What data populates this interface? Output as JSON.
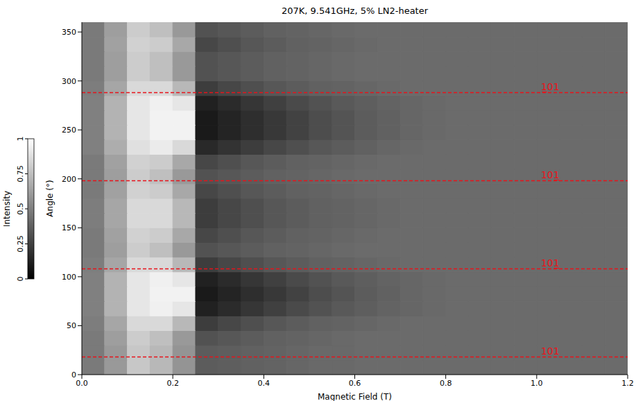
{
  "chart_data": {
    "type": "heatmap",
    "title": "207K, 9.541GHz, 5% LN2-heater",
    "x_label": "Magnetic Field (T)",
    "y_label": "Angle (°)",
    "xlim": [
      0,
      1.2
    ],
    "xticks": [
      {
        "value": 0,
        "label": "0.0"
      },
      0.2,
      0.4,
      0.6,
      0.8,
      {
        "value": 1,
        "label": "1.0"
      },
      1.2
    ],
    "ylim": [
      0,
      360
    ],
    "yticks": [
      0,
      50,
      100,
      150,
      200,
      250,
      300,
      350
    ],
    "x_bins": [
      0,
      0.05,
      0.1,
      0.15,
      0.2,
      0.25,
      0.3,
      0.35,
      0.4,
      0.45,
      0.5,
      0.55,
      0.6,
      0.65,
      0.7,
      0.75,
      0.8,
      0.85,
      0.9,
      0.95,
      1,
      1.05,
      1.1,
      1.15,
      1.2
    ],
    "y_bins": [
      0,
      15,
      30,
      45,
      60,
      75,
      90,
      105,
      120,
      135,
      150,
      165,
      180,
      195,
      210,
      225,
      240,
      255,
      270,
      285,
      300,
      315,
      330,
      345,
      360
    ],
    "cells": [
      [
        0.48,
        0.6,
        0.78,
        0.72,
        0.58,
        0.36,
        0.37,
        0.38,
        0.39,
        0.4,
        0.41,
        0.41,
        0.42,
        0.42,
        0.42,
        0.42,
        0.42,
        0.42,
        0.42,
        0.42,
        0.42,
        0.42,
        0.42,
        0.42
      ],
      [
        0.48,
        0.6,
        0.78,
        0.72,
        0.58,
        0.36,
        0.37,
        0.38,
        0.39,
        0.4,
        0.41,
        0.41,
        0.42,
        0.42,
        0.42,
        0.42,
        0.42,
        0.42,
        0.42,
        0.42,
        0.42,
        0.42,
        0.42,
        0.42
      ],
      [
        0.48,
        0.62,
        0.8,
        0.75,
        0.6,
        0.32,
        0.34,
        0.36,
        0.38,
        0.39,
        0.4,
        0.41,
        0.42,
        0.42,
        0.42,
        0.42,
        0.42,
        0.42,
        0.42,
        0.42,
        0.42,
        0.42,
        0.42,
        0.42
      ],
      [
        0.49,
        0.65,
        0.85,
        0.85,
        0.72,
        0.24,
        0.28,
        0.31,
        0.34,
        0.36,
        0.38,
        0.39,
        0.4,
        0.41,
        0.42,
        0.42,
        0.42,
        0.42,
        0.42,
        0.42,
        0.42,
        0.42,
        0.42,
        0.42
      ],
      [
        0.5,
        0.7,
        0.9,
        0.94,
        0.9,
        0.13,
        0.17,
        0.21,
        0.25,
        0.29,
        0.32,
        0.35,
        0.37,
        0.39,
        0.4,
        0.41,
        0.42,
        0.42,
        0.42,
        0.42,
        0.42,
        0.42,
        0.42,
        0.42
      ],
      [
        0.5,
        0.7,
        0.9,
        0.95,
        0.95,
        0.1,
        0.14,
        0.18,
        0.22,
        0.26,
        0.3,
        0.33,
        0.36,
        0.38,
        0.4,
        0.41,
        0.42,
        0.42,
        0.42,
        0.42,
        0.42,
        0.42,
        0.42,
        0.42
      ],
      [
        0.5,
        0.7,
        0.9,
        0.94,
        0.9,
        0.13,
        0.17,
        0.21,
        0.25,
        0.29,
        0.32,
        0.35,
        0.37,
        0.39,
        0.4,
        0.41,
        0.42,
        0.42,
        0.42,
        0.42,
        0.42,
        0.42,
        0.42,
        0.42
      ],
      [
        0.49,
        0.65,
        0.85,
        0.85,
        0.72,
        0.24,
        0.28,
        0.31,
        0.34,
        0.36,
        0.38,
        0.39,
        0.4,
        0.41,
        0.42,
        0.42,
        0.42,
        0.42,
        0.42,
        0.42,
        0.42,
        0.42,
        0.42,
        0.42
      ],
      [
        0.48,
        0.62,
        0.8,
        0.75,
        0.6,
        0.32,
        0.34,
        0.36,
        0.38,
        0.39,
        0.4,
        0.41,
        0.42,
        0.42,
        0.42,
        0.42,
        0.42,
        0.42,
        0.42,
        0.42,
        0.42,
        0.42,
        0.42,
        0.42
      ],
      [
        0.48,
        0.63,
        0.82,
        0.8,
        0.66,
        0.28,
        0.31,
        0.34,
        0.36,
        0.38,
        0.39,
        0.4,
        0.41,
        0.42,
        0.42,
        0.42,
        0.42,
        0.42,
        0.42,
        0.42,
        0.42,
        0.42,
        0.42,
        0.42
      ],
      [
        0.49,
        0.65,
        0.85,
        0.85,
        0.72,
        0.24,
        0.28,
        0.31,
        0.34,
        0.36,
        0.38,
        0.39,
        0.4,
        0.41,
        0.42,
        0.42,
        0.42,
        0.42,
        0.42,
        0.42,
        0.42,
        0.42,
        0.42,
        0.42
      ],
      [
        0.49,
        0.65,
        0.85,
        0.85,
        0.72,
        0.24,
        0.28,
        0.31,
        0.34,
        0.36,
        0.38,
        0.39,
        0.4,
        0.41,
        0.42,
        0.42,
        0.42,
        0.42,
        0.42,
        0.42,
        0.42,
        0.42,
        0.42,
        0.42
      ],
      [
        0.48,
        0.63,
        0.82,
        0.8,
        0.66,
        0.28,
        0.31,
        0.34,
        0.36,
        0.38,
        0.39,
        0.4,
        0.41,
        0.42,
        0.42,
        0.42,
        0.42,
        0.42,
        0.42,
        0.42,
        0.42,
        0.42,
        0.42,
        0.42
      ],
      [
        0.48,
        0.62,
        0.8,
        0.75,
        0.6,
        0.32,
        0.34,
        0.36,
        0.38,
        0.39,
        0.4,
        0.41,
        0.42,
        0.42,
        0.42,
        0.42,
        0.42,
        0.42,
        0.42,
        0.42,
        0.42,
        0.42,
        0.42,
        0.42
      ],
      [
        0.48,
        0.63,
        0.82,
        0.8,
        0.66,
        0.28,
        0.31,
        0.34,
        0.36,
        0.38,
        0.39,
        0.4,
        0.41,
        0.42,
        0.42,
        0.42,
        0.42,
        0.42,
        0.42,
        0.42,
        0.42,
        0.42,
        0.42,
        0.42
      ],
      [
        0.5,
        0.68,
        0.88,
        0.92,
        0.85,
        0.16,
        0.2,
        0.24,
        0.28,
        0.31,
        0.34,
        0.36,
        0.38,
        0.4,
        0.41,
        0.42,
        0.42,
        0.42,
        0.42,
        0.42,
        0.42,
        0.42,
        0.42,
        0.42
      ],
      [
        0.5,
        0.7,
        0.9,
        0.95,
        0.95,
        0.1,
        0.14,
        0.18,
        0.22,
        0.26,
        0.3,
        0.33,
        0.36,
        0.38,
        0.4,
        0.41,
        0.42,
        0.42,
        0.42,
        0.42,
        0.42,
        0.42,
        0.42,
        0.42
      ],
      [
        0.5,
        0.7,
        0.9,
        0.95,
        0.95,
        0.1,
        0.14,
        0.18,
        0.22,
        0.26,
        0.3,
        0.33,
        0.36,
        0.38,
        0.4,
        0.41,
        0.42,
        0.42,
        0.42,
        0.42,
        0.42,
        0.42,
        0.42,
        0.42
      ],
      [
        0.5,
        0.7,
        0.9,
        0.94,
        0.9,
        0.13,
        0.17,
        0.21,
        0.25,
        0.29,
        0.32,
        0.35,
        0.37,
        0.39,
        0.4,
        0.41,
        0.42,
        0.42,
        0.42,
        0.42,
        0.42,
        0.42,
        0.42,
        0.42
      ],
      [
        0.49,
        0.65,
        0.85,
        0.85,
        0.72,
        0.24,
        0.28,
        0.31,
        0.34,
        0.36,
        0.38,
        0.39,
        0.4,
        0.41,
        0.42,
        0.42,
        0.42,
        0.42,
        0.42,
        0.42,
        0.42,
        0.42,
        0.42,
        0.42
      ],
      [
        0.48,
        0.62,
        0.8,
        0.75,
        0.6,
        0.32,
        0.34,
        0.36,
        0.38,
        0.39,
        0.4,
        0.41,
        0.42,
        0.42,
        0.42,
        0.42,
        0.42,
        0.42,
        0.42,
        0.42,
        0.42,
        0.42,
        0.42,
        0.42
      ],
      [
        0.48,
        0.62,
        0.8,
        0.75,
        0.6,
        0.32,
        0.34,
        0.36,
        0.38,
        0.39,
        0.4,
        0.41,
        0.42,
        0.42,
        0.42,
        0.42,
        0.42,
        0.42,
        0.42,
        0.42,
        0.42,
        0.42,
        0.42,
        0.42
      ],
      [
        0.48,
        0.63,
        0.82,
        0.8,
        0.66,
        0.28,
        0.31,
        0.34,
        0.36,
        0.38,
        0.39,
        0.4,
        0.41,
        0.42,
        0.42,
        0.42,
        0.42,
        0.42,
        0.42,
        0.42,
        0.42,
        0.42,
        0.42,
        0.42
      ],
      [
        0.48,
        0.62,
        0.8,
        0.75,
        0.6,
        0.32,
        0.34,
        0.36,
        0.38,
        0.39,
        0.4,
        0.41,
        0.42,
        0.42,
        0.42,
        0.42,
        0.42,
        0.42,
        0.42,
        0.42,
        0.42,
        0.42,
        0.42,
        0.42
      ]
    ],
    "colorbar": {
      "label": "Intensity",
      "range": [
        0,
        1
      ],
      "ticks": [
        0,
        0.25,
        0.5,
        0.75,
        1
      ]
    },
    "annotations": [
      {
        "y": 288,
        "text": "1̲01",
        "color": "#e8131b",
        "line_style": "dashed"
      },
      {
        "y": 198,
        "text": "101̲",
        "color": "#e8131b",
        "line_style": "dashed"
      },
      {
        "y": 108,
        "text": "101̲",
        "color": "#e8131b",
        "line_style": "dashed"
      },
      {
        "y": 18,
        "text": "101",
        "color": "#e8131b",
        "line_style": "dashed"
      }
    ],
    "grid": false
  }
}
